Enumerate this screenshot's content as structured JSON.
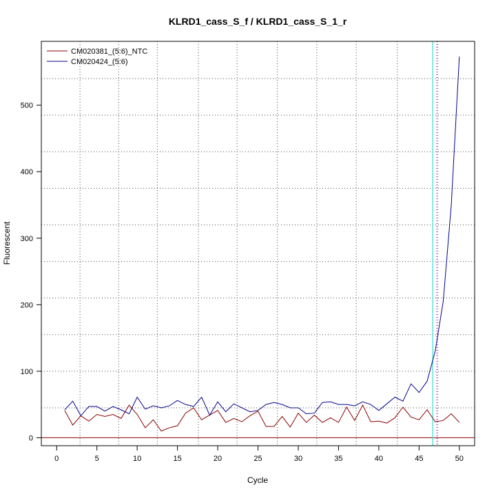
{
  "chart_data": {
    "type": "line",
    "title": "KLRD1_cass_S_f / KLRD1_cass_S_1_r",
    "xlabel": "Cycle",
    "ylabel": "Fluorescent",
    "xlim": [
      -1.9,
      51.9
    ],
    "ylim": [
      -12,
      596
    ],
    "x_ticks": [
      0,
      5,
      10,
      15,
      20,
      25,
      30,
      35,
      40,
      45,
      50
    ],
    "y_ticks": [
      0,
      100,
      200,
      300,
      400,
      500
    ],
    "grid": true,
    "grid_x": [
      2.9,
      7.7,
      12.5,
      17.6,
      22.4,
      27.4,
      32.3,
      37.2,
      42.3,
      47.3
    ],
    "grid_y": [
      45,
      100,
      155,
      210,
      265,
      320,
      375,
      430,
      485,
      540
    ],
    "legend_position": "top-left",
    "zero_line": {
      "y": 0,
      "color": "#8b0000"
    },
    "threshold_line": {
      "x": 46.7,
      "color": "#40e0d0"
    },
    "ct_line": {
      "x": 47.2,
      "color": "#a020f0"
    },
    "series": [
      {
        "name": "CM020381_(5:6)_NTC",
        "color": "#8b0000",
        "x": [
          1,
          2,
          3,
          4,
          5,
          6,
          7,
          8,
          9,
          10,
          11,
          12,
          13,
          14,
          15,
          16,
          17,
          18,
          19,
          20,
          21,
          22,
          23,
          24,
          25,
          26,
          27,
          28,
          29,
          30,
          31,
          32,
          33,
          34,
          35,
          36,
          37,
          38,
          39,
          40,
          41,
          42,
          43,
          44,
          45,
          46,
          47,
          48,
          49,
          50
        ],
        "values": [
          41,
          19,
          33,
          25,
          35,
          32,
          35,
          29,
          49,
          35,
          15,
          27,
          10,
          15,
          18,
          37,
          45,
          27,
          34,
          41,
          23,
          29,
          24,
          33,
          40,
          17,
          17,
          32,
          16,
          37,
          23,
          34,
          23,
          30,
          23,
          46,
          26,
          49,
          24,
          25,
          22,
          30,
          46,
          31,
          27,
          42,
          24,
          26,
          36,
          23
        ]
      },
      {
        "name": "CM020424_(5:6)",
        "color": "#00008b",
        "x": [
          1,
          2,
          3,
          4,
          5,
          6,
          7,
          8,
          9,
          10,
          11,
          12,
          13,
          14,
          15,
          16,
          17,
          18,
          19,
          20,
          21,
          22,
          23,
          24,
          25,
          26,
          27,
          28,
          29,
          30,
          31,
          32,
          33,
          34,
          35,
          36,
          37,
          38,
          39,
          40,
          41,
          42,
          43,
          44,
          45,
          46,
          47,
          48,
          49,
          50
        ],
        "values": [
          42,
          55,
          33,
          47,
          47,
          40,
          47,
          42,
          36,
          61,
          43,
          48,
          45,
          48,
          56,
          50,
          47,
          61,
          34,
          54,
          39,
          51,
          45,
          39,
          41,
          50,
          53,
          50,
          45,
          45,
          36,
          37,
          53,
          54,
          50,
          50,
          48,
          54,
          50,
          41,
          51,
          61,
          55,
          81,
          68,
          85,
          130,
          205,
          350,
          573
        ]
      }
    ]
  }
}
